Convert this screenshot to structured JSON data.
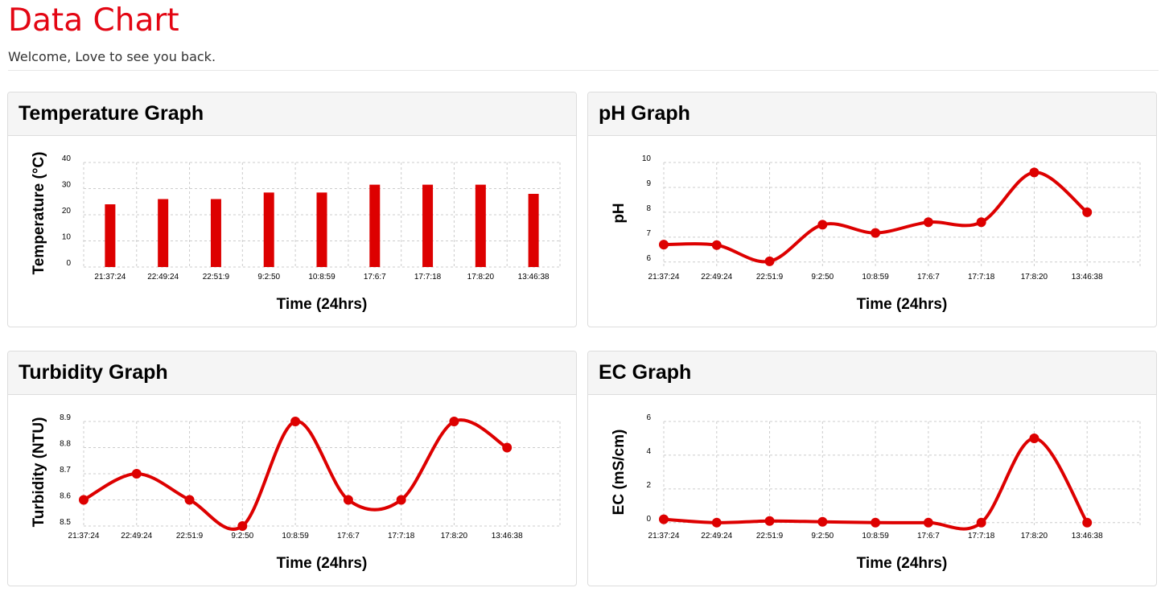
{
  "header": {
    "title": "Data Chart",
    "welcome": "Welcome, Love to see you back."
  },
  "colors": {
    "accent": "#e30613",
    "series": "#dd0000",
    "grid": "#cccccc"
  },
  "chart_data": [
    {
      "type": "bar",
      "title": "Temperature Graph",
      "xlabel": "Time (24hrs)",
      "ylabel": "Temperature (°C)",
      "categories": [
        "21:37:24",
        "22:49:24",
        "22:51:9",
        "9:2:50",
        "10:8:59",
        "17:6:7",
        "17:7:18",
        "17:8:20",
        "13:46:38"
      ],
      "values": [
        24,
        26,
        26,
        28.5,
        28.5,
        31.5,
        31.5,
        31.5,
        28
      ],
      "ylim": [
        0,
        40
      ],
      "yticks": [
        0,
        10,
        20,
        30,
        40
      ],
      "grid": true
    },
    {
      "type": "line",
      "title": "pH Graph",
      "xlabel": "Time (24hrs)",
      "ylabel": "pH",
      "categories": [
        "21:37:24",
        "22:49:24",
        "22:51:9",
        "9:2:50",
        "10:8:59",
        "17:6:7",
        "17:7:18",
        "17:8:20",
        "13:46:38"
      ],
      "values": [
        6.7,
        6.68,
        6.03,
        7.5,
        7.17,
        7.6,
        7.6,
        9.6,
        8.0
      ],
      "ylim": [
        5.8,
        10
      ],
      "yticks": [
        6,
        7,
        8,
        9,
        10
      ],
      "grid": true
    },
    {
      "type": "line",
      "title": "Turbidity Graph",
      "xlabel": "Time (24hrs)",
      "ylabel": "Turbidity (NTU)",
      "categories": [
        "21:37:24",
        "22:49:24",
        "22:51:9",
        "9:2:50",
        "10:8:59",
        "17:6:7",
        "17:7:18",
        "17:8:20",
        "13:46:38"
      ],
      "values": [
        8.6,
        8.7,
        8.6,
        8.5,
        8.9,
        8.6,
        8.6,
        8.9,
        8.8
      ],
      "ylim": [
        8.5,
        8.9
      ],
      "yticks": [
        8.5,
        8.6,
        8.7,
        8.8,
        8.9
      ],
      "grid": true
    },
    {
      "type": "line",
      "title": "EC Graph",
      "xlabel": "Time (24hrs)",
      "ylabel": "EC (mS/cm)",
      "categories": [
        "21:37:24",
        "22:49:24",
        "22:51:9",
        "9:2:50",
        "10:8:59",
        "17:6:7",
        "17:7:18",
        "17:8:20",
        "13:46:38"
      ],
      "values": [
        0.2,
        0.0,
        0.1,
        0.05,
        0.0,
        0.0,
        0.0,
        5.0,
        0.0
      ],
      "ylim": [
        -0.2,
        6
      ],
      "yticks": [
        0,
        2,
        4,
        6
      ],
      "grid": true
    }
  ]
}
